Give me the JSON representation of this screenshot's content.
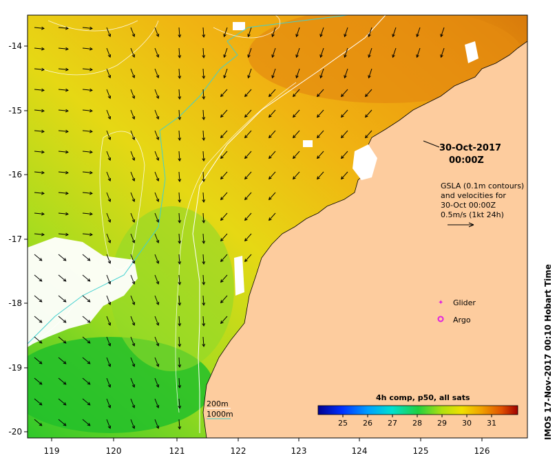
{
  "map": {
    "x_ticks": [
      "119",
      "120",
      "121",
      "122",
      "123",
      "124",
      "125",
      "126"
    ],
    "y_ticks": [
      "-14",
      "-15",
      "-16",
      "-17",
      "-18",
      "-19",
      "-20"
    ],
    "x_range": [
      118.6,
      126.7
    ],
    "y_range": [
      -20.1,
      -13.55
    ]
  },
  "annotation": {
    "date_line1": "30-Oct-2017",
    "date_line2": "00:00Z",
    "gsla_line1": "GSLA (0.1m contours)",
    "gsla_line2": "and velocities for",
    "gsla_line3": "30-Oct 00:00Z",
    "gsla_line4": "0.5m/s (1kt 24h)"
  },
  "legend": {
    "glider_label": "Glider",
    "argo_label": "Argo",
    "glider_color": "#e020e0",
    "argo_color": "#e020e0"
  },
  "bathy": {
    "label_200": "200m",
    "label_1000": "1000m",
    "color_200": "#ffffff",
    "color_1000": "#40d0d0"
  },
  "colorbar": {
    "title": "4h comp, p50, all sats",
    "ticks": [
      "25",
      "26",
      "27",
      "28",
      "29",
      "30",
      "31"
    ]
  },
  "credit": "IMOS 17-Nov-2017 00:10 Hobart Time",
  "colors": {
    "land": "#fdcc9e",
    "cloud": "#ffffff",
    "arrow": "#000000"
  }
}
